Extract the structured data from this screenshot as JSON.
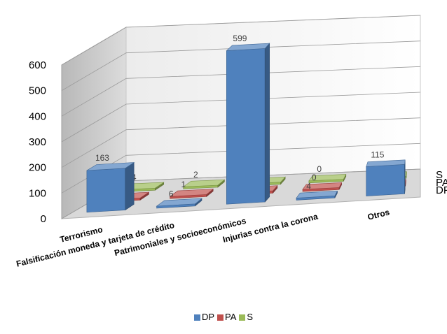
{
  "chart_data": {
    "type": "bar",
    "title": "",
    "xlabel": "",
    "ylabel": "",
    "ylim": [
      0,
      600
    ],
    "yticks": [
      0,
      100,
      200,
      300,
      400,
      500,
      600
    ],
    "grid": true,
    "legend_position": "bottom",
    "categories": [
      "Terrorismo",
      "Falsificación moneda y tarjeta de crédito",
      "Patrimoniales y socioeconómicos",
      "Injurias contra la corona",
      "Otros"
    ],
    "series": [
      {
        "name": "DP",
        "values": [
          163,
          6,
          599,
          4,
          115
        ],
        "color": "#4f81bd"
      },
      {
        "name": "PA",
        "values": [
          3,
          1,
          9,
          0,
          5
        ],
        "color": "#c0504d"
      },
      {
        "name": "S",
        "values": [
          4,
          2,
          0,
          0,
          5
        ],
        "color": "#9bbb59"
      }
    ]
  }
}
